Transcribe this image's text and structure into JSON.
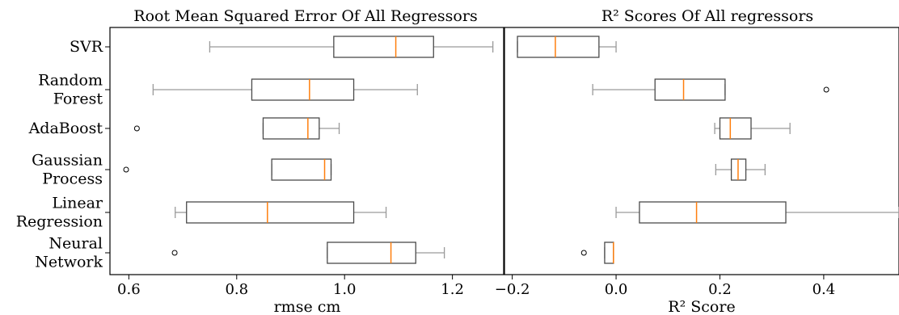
{
  "chart_data": [
    {
      "type": "box",
      "orientation": "horizontal",
      "title": "Root Mean Squared Error Of All Regressors",
      "xlabel": "rmse cm",
      "ylabel": "",
      "xlim": [
        0.565,
        1.295
      ],
      "xticks": [
        0.6,
        0.8,
        1.0,
        1.2
      ],
      "xtick_labels": [
        "0.6",
        "0.8",
        "1.0",
        "1.2"
      ],
      "grid": false,
      "categories": [
        [
          "SVR"
        ],
        [
          "Random",
          "Forest"
        ],
        [
          "AdaBoost"
        ],
        [
          "Gaussian",
          "Process"
        ],
        [
          "Linear",
          "Regression"
        ],
        [
          "Neural",
          "Network"
        ]
      ],
      "boxes": [
        {
          "whislo": 0.75,
          "q1": 0.98,
          "med": 1.095,
          "q3": 1.165,
          "whishi": 1.275,
          "fliers": []
        },
        {
          "whislo": 0.645,
          "q1": 0.828,
          "med": 0.935,
          "q3": 1.017,
          "whishi": 1.135,
          "fliers": []
        },
        {
          "whislo": 0.849,
          "q1": 0.849,
          "med": 0.932,
          "q3": 0.953,
          "whishi": 0.99,
          "fliers": [
            0.615
          ]
        },
        {
          "whislo": 0.865,
          "q1": 0.865,
          "med": 0.963,
          "q3": 0.975,
          "whishi": 0.975,
          "fliers": [
            0.595
          ]
        },
        {
          "whislo": 0.686,
          "q1": 0.707,
          "med": 0.857,
          "q3": 1.017,
          "whishi": 1.077,
          "fliers": []
        },
        {
          "whislo": 0.968,
          "q1": 0.968,
          "med": 1.086,
          "q3": 1.132,
          "whishi": 1.185,
          "fliers": [
            0.685
          ]
        }
      ]
    },
    {
      "type": "box",
      "orientation": "horizontal",
      "title": "R² Scores Of All regressors",
      "xlabel": "R² Score",
      "ylabel": "",
      "xlim": [
        -0.215,
        0.545
      ],
      "xticks": [
        -0.2,
        0.0,
        0.2,
        0.4
      ],
      "xtick_labels": [
        "−0.2",
        "0.0",
        "0.2",
        "0.4"
      ],
      "grid": false,
      "boxes": [
        {
          "whislo": -0.19,
          "q1": -0.19,
          "med": -0.117,
          "q3": -0.033,
          "whishi": 0.0,
          "fliers": []
        },
        {
          "whislo": -0.045,
          "q1": 0.075,
          "med": 0.13,
          "q3": 0.21,
          "whishi": 0.21,
          "fliers": [
            0.405
          ]
        },
        {
          "whislo": 0.19,
          "q1": 0.2,
          "med": 0.22,
          "q3": 0.26,
          "whishi": 0.335,
          "fliers": []
        },
        {
          "whislo": 0.192,
          "q1": 0.222,
          "med": 0.235,
          "q3": 0.25,
          "whishi": 0.287,
          "fliers": []
        },
        {
          "whislo": 0.0,
          "q1": 0.045,
          "med": 0.155,
          "q3": 0.327,
          "whishi": 0.545,
          "fliers": []
        },
        {
          "whislo": -0.022,
          "q1": -0.022,
          "med": -0.005,
          "q3": -0.005,
          "whishi": -0.005,
          "fliers": [
            -0.062
          ]
        }
      ]
    }
  ],
  "colors": {
    "box_line": "#9a9a9a",
    "median": "#ff7f0e",
    "axis": "#000000",
    "background": "#ffffff"
  }
}
